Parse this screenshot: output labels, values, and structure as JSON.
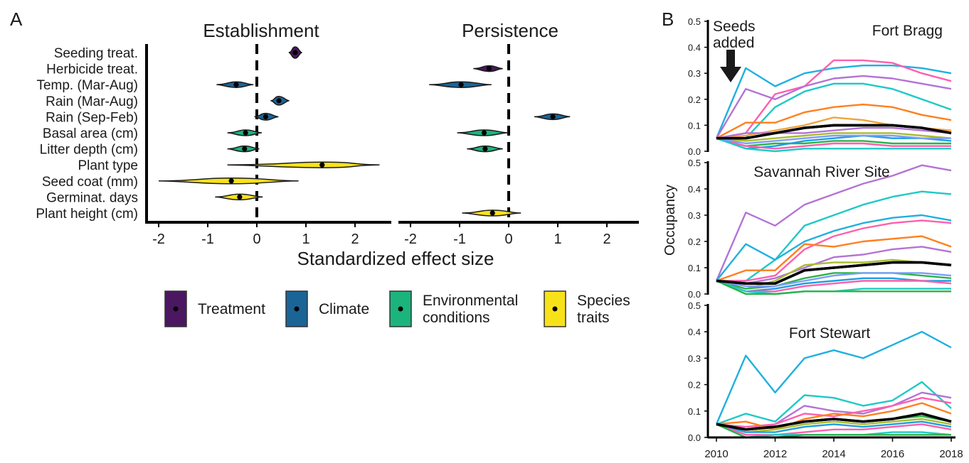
{
  "panel_a_letter": "A",
  "panel_b_letter": "B",
  "chart_data": [
    {
      "type": "violin",
      "title": "Establishment",
      "xlabel": "Standardized effect size",
      "xlim": [
        -2.2,
        2.7
      ],
      "xticks": [
        "-2",
        "-1",
        "0",
        "1",
        "2"
      ],
      "reference_line_x": 0,
      "categories": [
        "Seeding treat.",
        "Herbicide treat.",
        "Temp. (Mar-Aug)",
        "Rain (Mar-Aug)",
        "Rain (Sep-Feb)",
        "Basal area (cm)",
        "Litter depth (cm)",
        "Plant type",
        "Seed coat (mm)",
        "Germinat. days",
        "Plant height (cm)"
      ],
      "estimates": [
        {
          "category": "Seeding treat.",
          "group": "Treatment",
          "mean": 0.78,
          "low": 0.65,
          "high": 0.92
        },
        {
          "category": "Temp. (Mar-Aug)",
          "group": "Climate",
          "mean": -0.42,
          "low": -0.82,
          "high": -0.07
        },
        {
          "category": "Rain (Mar-Aug)",
          "group": "Climate",
          "mean": 0.45,
          "low": 0.28,
          "high": 0.66
        },
        {
          "category": "Rain (Sep-Feb)",
          "group": "Climate",
          "mean": 0.18,
          "low": -0.05,
          "high": 0.44
        },
        {
          "category": "Basal area (cm)",
          "group": "Environmental conditions",
          "mean": -0.23,
          "low": -0.6,
          "high": 0.1
        },
        {
          "category": "Litter depth (cm)",
          "group": "Environmental conditions",
          "mean": -0.25,
          "low": -0.6,
          "high": 0.05
        },
        {
          "category": "Plant type",
          "group": "Species traits",
          "mean": 1.33,
          "low": -0.6,
          "high": 2.5
        },
        {
          "category": "Seed coat (mm)",
          "group": "Species traits",
          "mean": -0.52,
          "low": -2.0,
          "high": 0.85
        },
        {
          "category": "Germinat. days",
          "group": "Species traits",
          "mean": -0.35,
          "low": -0.85,
          "high": 0.12
        }
      ]
    },
    {
      "type": "violin",
      "title": "Persistence",
      "xlim": [
        -2.2,
        2.7
      ],
      "xticks": [
        "-2",
        "-1",
        "0",
        "1",
        "2"
      ],
      "reference_line_x": 0,
      "estimates": [
        {
          "category": "Herbicide treat.",
          "group": "Treatment",
          "mean": -0.4,
          "low": -0.72,
          "high": -0.12
        },
        {
          "category": "Temp. (Mar-Aug)",
          "group": "Climate",
          "mean": -0.97,
          "low": -1.62,
          "high": -0.35
        },
        {
          "category": "Rain (Sep-Feb)",
          "group": "Climate",
          "mean": 0.9,
          "low": 0.52,
          "high": 1.25
        },
        {
          "category": "Basal area (cm)",
          "group": "Environmental conditions",
          "mean": -0.5,
          "low": -1.05,
          "high": 0.0
        },
        {
          "category": "Litter depth (cm)",
          "group": "Environmental conditions",
          "mean": -0.48,
          "low": -0.85,
          "high": -0.12
        },
        {
          "category": "Plant height (cm)",
          "group": "Species traits",
          "mean": -0.33,
          "low": -0.95,
          "high": 0.25
        }
      ]
    },
    {
      "type": "line",
      "title": "Fort Bragg",
      "ylabel": "Occupancy",
      "ylim": [
        0,
        0.5
      ],
      "yticks": [
        "0.0",
        "0.1",
        "0.2",
        "0.3",
        "0.4",
        "0.5"
      ],
      "x": [
        2010,
        2011,
        2012,
        2013,
        2014,
        2015,
        2016,
        2017,
        2018
      ],
      "annotation": [
        "Seeds",
        "added"
      ],
      "series": [
        {
          "color": "#1fb0e0",
          "values": [
            0.05,
            0.32,
            0.25,
            0.3,
            0.32,
            0.33,
            0.33,
            0.32,
            0.3
          ]
        },
        {
          "color": "#ff5fae",
          "values": [
            0.05,
            0.07,
            0.22,
            0.25,
            0.35,
            0.35,
            0.34,
            0.3,
            0.27
          ]
        },
        {
          "color": "#b373d6",
          "values": [
            0.05,
            0.24,
            0.2,
            0.25,
            0.28,
            0.29,
            0.28,
            0.26,
            0.24
          ]
        },
        {
          "color": "#1fc9c4",
          "values": [
            0.05,
            0.05,
            0.17,
            0.23,
            0.26,
            0.26,
            0.24,
            0.2,
            0.16
          ]
        },
        {
          "color": "#ff7f1e",
          "values": [
            0.05,
            0.11,
            0.11,
            0.15,
            0.17,
            0.18,
            0.17,
            0.14,
            0.12
          ]
        },
        {
          "color": "#f2a33a",
          "values": [
            0.05,
            0.06,
            0.08,
            0.1,
            0.13,
            0.12,
            0.1,
            0.09,
            0.08
          ]
        },
        {
          "color": "#b373d6",
          "values": [
            0.05,
            0.07,
            0.07,
            0.07,
            0.08,
            0.09,
            0.09,
            0.08,
            0.07
          ]
        },
        {
          "color": "#2bb34c",
          "values": [
            0.05,
            0.02,
            0.03,
            0.03,
            0.04,
            0.04,
            0.03,
            0.03,
            0.03
          ]
        },
        {
          "color": "#a8bc2e",
          "values": [
            0.05,
            0.04,
            0.05,
            0.06,
            0.07,
            0.07,
            0.07,
            0.06,
            0.05
          ]
        },
        {
          "color": "#1f9fe0",
          "values": [
            0.05,
            0.01,
            0.02,
            0.04,
            0.05,
            0.06,
            0.05,
            0.05,
            0.04
          ]
        },
        {
          "color": "#ff5fae",
          "values": [
            0.05,
            0.02,
            0.01,
            0.02,
            0.03,
            0.03,
            0.02,
            0.02,
            0.02
          ]
        },
        {
          "color": "#1fc9c4",
          "values": [
            0.05,
            0.01,
            0.0,
            0.01,
            0.01,
            0.01,
            0.01,
            0.01,
            0.01
          ]
        },
        {
          "color": "#7f9cff",
          "values": [
            0.05,
            0.03,
            0.04,
            0.05,
            0.06,
            0.06,
            0.06,
            0.05,
            0.05
          ]
        },
        {
          "color": "#000000",
          "values": [
            0.05,
            0.05,
            0.07,
            0.09,
            0.1,
            0.1,
            0.1,
            0.09,
            0.07
          ],
          "bold": true
        }
      ]
    },
    {
      "type": "line",
      "title": "Savannah River Site",
      "ylim": [
        0,
        0.5
      ],
      "yticks": [
        "0.0",
        "0.1",
        "0.2",
        "0.3",
        "0.4",
        "0.5"
      ],
      "x": [
        2010,
        2011,
        2012,
        2013,
        2014,
        2015,
        2016,
        2017,
        2018
      ],
      "series": [
        {
          "color": "#b373d6",
          "values": [
            0.05,
            0.31,
            0.26,
            0.34,
            0.38,
            0.42,
            0.45,
            0.49,
            0.47
          ]
        },
        {
          "color": "#1fc9c4",
          "values": [
            0.05,
            0.05,
            0.13,
            0.26,
            0.3,
            0.34,
            0.37,
            0.39,
            0.38
          ]
        },
        {
          "color": "#1fb0e0",
          "values": [
            0.05,
            0.19,
            0.13,
            0.2,
            0.24,
            0.27,
            0.29,
            0.3,
            0.28
          ]
        },
        {
          "color": "#ff5fae",
          "values": [
            0.05,
            0.05,
            0.07,
            0.17,
            0.22,
            0.25,
            0.27,
            0.28,
            0.27
          ]
        },
        {
          "color": "#ff7f1e",
          "values": [
            0.05,
            0.09,
            0.09,
            0.19,
            0.18,
            0.2,
            0.21,
            0.22,
            0.18
          ]
        },
        {
          "color": "#b373d6",
          "values": [
            0.05,
            0.04,
            0.06,
            0.1,
            0.14,
            0.15,
            0.17,
            0.18,
            0.16
          ]
        },
        {
          "color": "#a8bc2e",
          "values": [
            0.05,
            0.02,
            0.05,
            0.11,
            0.12,
            0.12,
            0.13,
            0.12,
            0.11
          ]
        },
        {
          "color": "#2bb34c",
          "values": [
            0.05,
            0.02,
            0.03,
            0.06,
            0.08,
            0.08,
            0.08,
            0.07,
            0.06
          ]
        },
        {
          "color": "#1f9fe0",
          "values": [
            0.05,
            0.01,
            0.02,
            0.04,
            0.05,
            0.06,
            0.06,
            0.05,
            0.05
          ]
        },
        {
          "color": "#ff5fae",
          "values": [
            0.05,
            0.01,
            0.01,
            0.03,
            0.04,
            0.05,
            0.05,
            0.05,
            0.04
          ]
        },
        {
          "color": "#1fc9c4",
          "values": [
            0.05,
            0.01,
            0.0,
            0.01,
            0.01,
            0.02,
            0.02,
            0.02,
            0.02
          ]
        },
        {
          "color": "#2bb34c",
          "values": [
            0.05,
            0.0,
            0.0,
            0.01,
            0.01,
            0.01,
            0.01,
            0.01,
            0.01
          ]
        },
        {
          "color": "#7f9cff",
          "values": [
            0.05,
            0.03,
            0.03,
            0.05,
            0.07,
            0.08,
            0.08,
            0.08,
            0.07
          ]
        },
        {
          "color": "#000000",
          "values": [
            0.05,
            0.04,
            0.04,
            0.09,
            0.1,
            0.11,
            0.12,
            0.12,
            0.11
          ],
          "bold": true
        }
      ]
    },
    {
      "type": "line",
      "title": "Fort Stewart",
      "xlabel": "",
      "ylim": [
        0,
        0.5
      ],
      "yticks": [
        "0.0",
        "0.1",
        "0.2",
        "0.3",
        "0.4",
        "0.5"
      ],
      "xticks": [
        "2010",
        "2012",
        "2014",
        "2016",
        "2018"
      ],
      "x": [
        2010,
        2011,
        2012,
        2013,
        2014,
        2015,
        2016,
        2017,
        2018
      ],
      "series": [
        {
          "color": "#1fb0e0",
          "values": [
            0.05,
            0.31,
            0.17,
            0.3,
            0.33,
            0.3,
            0.35,
            0.4,
            0.34
          ]
        },
        {
          "color": "#1fc9c4",
          "values": [
            0.05,
            0.09,
            0.06,
            0.16,
            0.15,
            0.12,
            0.14,
            0.21,
            0.11
          ]
        },
        {
          "color": "#b373d6",
          "values": [
            0.05,
            0.03,
            0.05,
            0.12,
            0.1,
            0.09,
            0.12,
            0.17,
            0.15
          ]
        },
        {
          "color": "#ff5fae",
          "values": [
            0.05,
            0.04,
            0.05,
            0.09,
            0.08,
            0.1,
            0.12,
            0.15,
            0.13
          ]
        },
        {
          "color": "#ff7f1e",
          "values": [
            0.05,
            0.06,
            0.03,
            0.07,
            0.09,
            0.08,
            0.1,
            0.13,
            0.09
          ]
        },
        {
          "color": "#2bb34c",
          "values": [
            0.05,
            0.03,
            0.04,
            0.06,
            0.07,
            0.06,
            0.07,
            0.08,
            0.06
          ]
        },
        {
          "color": "#a8bc2e",
          "values": [
            0.05,
            0.02,
            0.03,
            0.05,
            0.06,
            0.05,
            0.06,
            0.07,
            0.05
          ]
        },
        {
          "color": "#1f9fe0",
          "values": [
            0.05,
            0.02,
            0.02,
            0.04,
            0.05,
            0.04,
            0.05,
            0.06,
            0.04
          ]
        },
        {
          "color": "#ff5fae",
          "values": [
            0.05,
            0.01,
            0.01,
            0.02,
            0.03,
            0.03,
            0.04,
            0.05,
            0.03
          ]
        },
        {
          "color": "#1fc9c4",
          "values": [
            0.05,
            0.0,
            0.01,
            0.01,
            0.01,
            0.01,
            0.02,
            0.02,
            0.01
          ]
        },
        {
          "color": "#2bb34c",
          "values": [
            0.05,
            0.0,
            0.0,
            0.01,
            0.01,
            0.01,
            0.01,
            0.01,
            0.01
          ]
        },
        {
          "color": "#000000",
          "values": [
            0.05,
            0.03,
            0.04,
            0.06,
            0.07,
            0.06,
            0.07,
            0.09,
            0.06
          ],
          "bold": true
        }
      ]
    }
  ],
  "legend": {
    "items": [
      {
        "label_lines": [
          "Treatment"
        ],
        "color": "#4a1760"
      },
      {
        "label_lines": [
          "Climate"
        ],
        "color": "#1b6496"
      },
      {
        "label_lines": [
          "Environmental",
          "conditions"
        ],
        "color": "#1bb47d"
      },
      {
        "label_lines": [
          "Species",
          "traits"
        ],
        "color": "#f7e21a"
      }
    ]
  },
  "panel_b_ylabel": "Occupancy"
}
